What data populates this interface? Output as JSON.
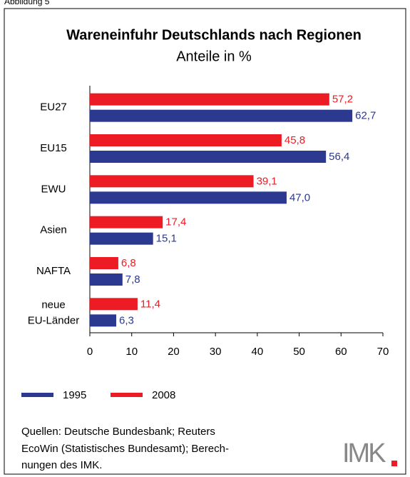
{
  "chart_data": {
    "type": "hbar",
    "caption": "Abbildung 5",
    "title": "Wareneinfuhr Deutschlands nach Regionen",
    "subtitle": "Anteile in %",
    "categories": [
      "EU27",
      "EU15",
      "EWU",
      "Asien",
      "NAFTA",
      "neue EU-Länder"
    ],
    "series": [
      {
        "name": "1995",
        "color": "#2b3990",
        "values": [
          62.7,
          56.4,
          47.0,
          15.1,
          7.8,
          6.3
        ],
        "value_labels": [
          "62,7",
          "56,4",
          "47,0",
          "15,1",
          "7,8",
          "6,3"
        ]
      },
      {
        "name": "2008",
        "color": "#ed1c24",
        "values": [
          57.2,
          45.8,
          39.1,
          17.4,
          6.8,
          11.4
        ],
        "value_labels": [
          "57,2",
          "45,8",
          "39,1",
          "17,4",
          "6,8",
          "11,4"
        ]
      }
    ],
    "xlim": [
      0,
      70
    ],
    "xticks": [
      0,
      10,
      20,
      30,
      40,
      50,
      60,
      70
    ],
    "grid": false,
    "source": [
      "Quellen: Deutsche Bundesbank; Reuters",
      "EcoWin (Statistisches Bundesamt); Berech-",
      "nungen des IMK."
    ],
    "logo": "IMK"
  }
}
